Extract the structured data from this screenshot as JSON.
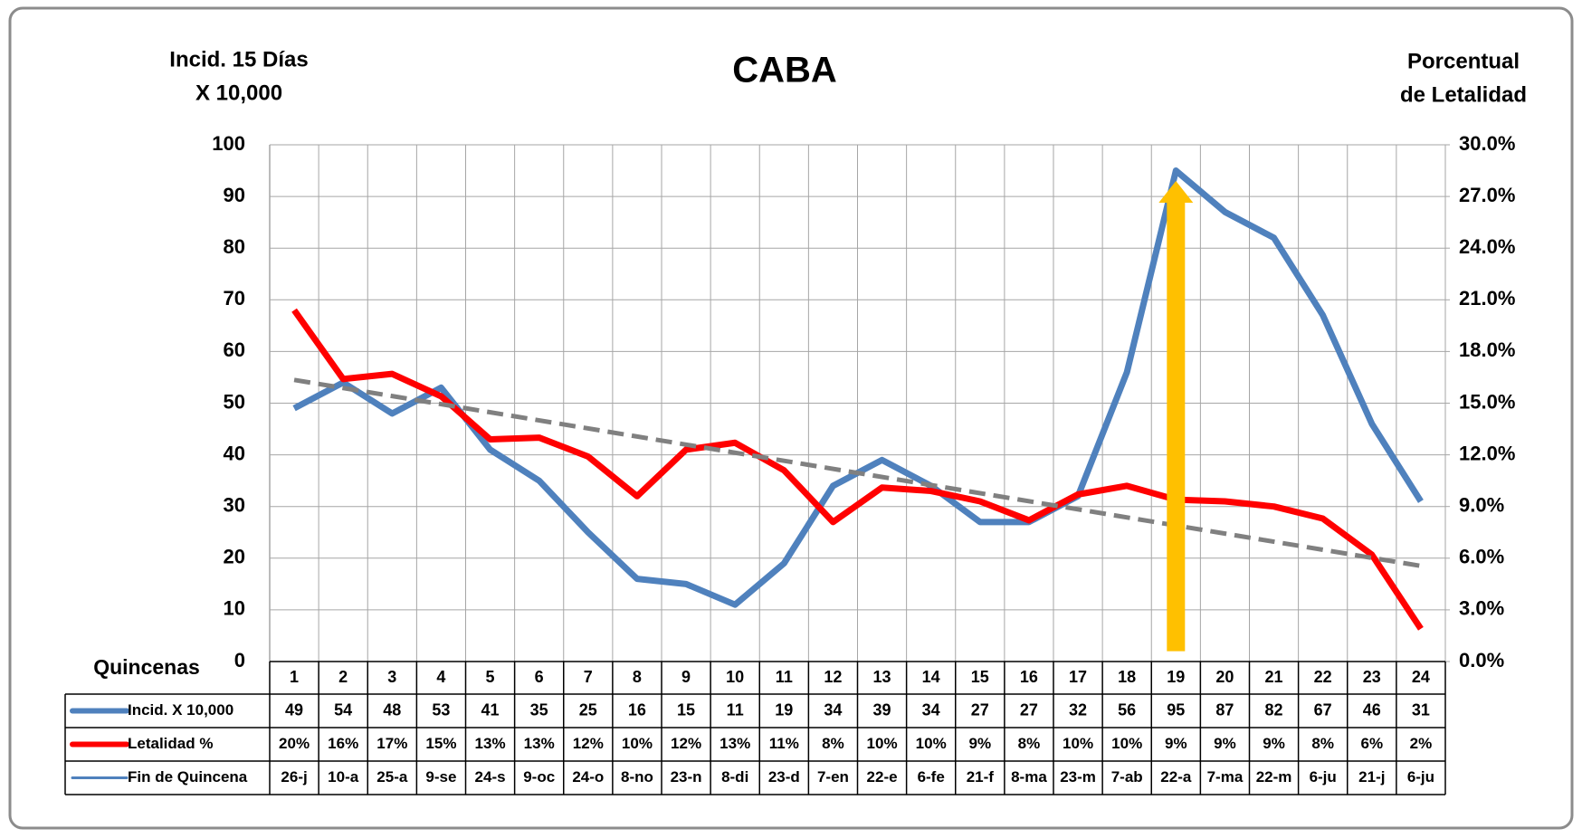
{
  "chart_data": {
    "type": "line",
    "title": "CABA",
    "x_label": "Quincenas",
    "y_label": [
      "Incid. 15 Días",
      "X 10,000"
    ],
    "y2_label": [
      "Porcentual",
      "de Letalidad"
    ],
    "categories": [
      "1",
      "2",
      "3",
      "4",
      "5",
      "6",
      "7",
      "8",
      "9",
      "10",
      "11",
      "12",
      "13",
      "14",
      "15",
      "16",
      "17",
      "18",
      "19",
      "20",
      "21",
      "22",
      "23",
      "24"
    ],
    "series": [
      {
        "name": "Incid. X 10,000",
        "color": "#4f81bd",
        "values": [
          49,
          54,
          48,
          53,
          41,
          35,
          25,
          16,
          15,
          11,
          19,
          34,
          39,
          34,
          27,
          27,
          32,
          56,
          95,
          87,
          82,
          67,
          46,
          31
        ]
      },
      {
        "name": "Letalidad %",
        "color": "#ff0000",
        "axis": "y2",
        "values": [
          20.4,
          16.4,
          16.7,
          15.4,
          12.9,
          13.0,
          11.9,
          9.6,
          12.3,
          12.7,
          11.1,
          8.1,
          10.1,
          9.9,
          9.3,
          8.2,
          9.7,
          10.2,
          9.4,
          9.3,
          9.0,
          8.3,
          6.2,
          1.9
        ],
        "value_labels": [
          "20%",
          "16%",
          "17%",
          "15%",
          "13%",
          "13%",
          "12%",
          "10%",
          "12%",
          "13%",
          "11%",
          "8%",
          "10%",
          "10%",
          "9%",
          "8%",
          "10%",
          "10%",
          "9%",
          "9%",
          "9%",
          "8%",
          "6%",
          "2%"
        ]
      }
    ],
    "dates": {
      "name": "Fin de Quincena",
      "color": "#4f81bd",
      "values": [
        "26-j",
        "10-a",
        "25-a",
        "9-se",
        "24-s",
        "9-oc",
        "24-o",
        "8-no",
        "23-n",
        "8-di",
        "23-d",
        "7-en",
        "22-e",
        "6-fe",
        "21-f",
        "8-ma",
        "23-m",
        "7-ab",
        "22-a",
        "7-ma",
        "22-m",
        "6-ju",
        "21-j",
        "6-ju"
      ]
    },
    "trend": {
      "start": 54.5,
      "end": 18.5,
      "color": "#808080"
    },
    "arrow": {
      "category": "19",
      "from": 2,
      "to": 93,
      "color": "#ffc000"
    },
    "ylim": [
      0,
      100
    ],
    "yticks": [
      0,
      10,
      20,
      30,
      40,
      50,
      60,
      70,
      80,
      90,
      100
    ],
    "y2lim": [
      0,
      30
    ],
    "y2ticks": [
      {
        "value": 0,
        "label": "0.0%"
      },
      {
        "value": 3,
        "label": "3.0%"
      },
      {
        "value": 6,
        "label": "6.0%"
      },
      {
        "value": 9,
        "label": "9.0%"
      },
      {
        "value": 12,
        "label": "12.0%"
      },
      {
        "value": 15,
        "label": "15.0%"
      },
      {
        "value": 18,
        "label": "18.0%"
      },
      {
        "value": 21,
        "label": "21.0%"
      },
      {
        "value": 24,
        "label": "24.0%"
      },
      {
        "value": 27,
        "label": "27.0%"
      },
      {
        "value": 30,
        "label": "30.0%"
      }
    ],
    "grid": true
  }
}
